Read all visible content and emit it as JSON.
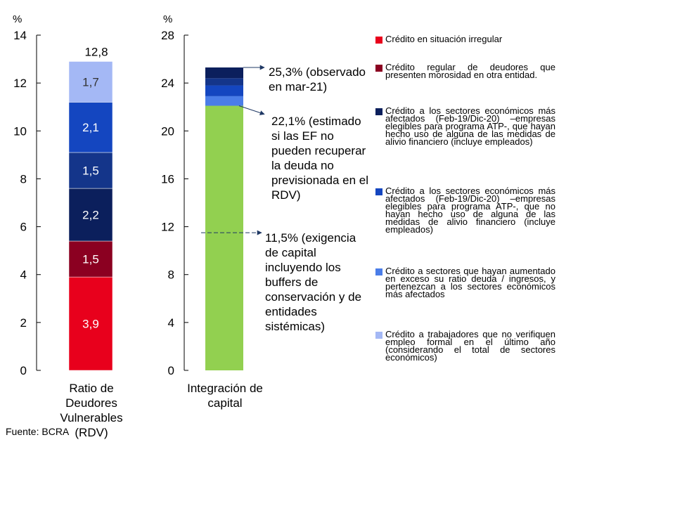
{
  "chart_data": [
    {
      "type": "bar",
      "stacked": true,
      "unit_label": "%",
      "categories": [
        "Ratio de Deudores Vulnerables (RDV)"
      ],
      "ylim": [
        0,
        14
      ],
      "yticks": [
        0,
        2,
        4,
        6,
        8,
        10,
        12,
        14
      ],
      "series": [
        {
          "color": "#E8001C",
          "values": [
            3.9
          ],
          "label": "3,9"
        },
        {
          "color": "#8B0021",
          "values": [
            1.5
          ],
          "label": "1,5"
        },
        {
          "color": "#0B1F5C",
          "values": [
            2.2
          ],
          "label": "2,2"
        },
        {
          "color": "#14358A",
          "values": [
            1.5
          ],
          "label": "1,5"
        },
        {
          "color": "#1446C0",
          "values": [
            2.1
          ],
          "label": "2,1"
        },
        {
          "color": "#A4B8F5",
          "values": [
            1.7
          ],
          "label": "1,7"
        }
      ],
      "total_label": "12,8"
    },
    {
      "type": "bar",
      "stacked": true,
      "unit_label": "%",
      "categories": [
        "Integración de capital"
      ],
      "ylim": [
        0,
        28
      ],
      "yticks": [
        0,
        4,
        8,
        12,
        16,
        20,
        24,
        28
      ],
      "series": [
        {
          "color": "#92D050",
          "values": [
            22.1
          ]
        },
        {
          "color": "#4A7DE8",
          "values": [
            0.8
          ]
        },
        {
          "color": "#1446C0",
          "values": [
            0.9
          ]
        },
        {
          "color": "#14358A",
          "values": [
            0.6
          ]
        },
        {
          "color": "#0B1F5C",
          "values": [
            0.9
          ]
        }
      ],
      "annotations": [
        {
          "y": 25.3,
          "text": "25,3% (observado en mar-21)"
        },
        {
          "y": 22.1,
          "text": "22,1% (estimado si las EF no pueden recuperar la deuda no previsionada en el RDV)"
        },
        {
          "y": 11.5,
          "text": "11,5% (exigencia de capital incluyendo los buffers de conservación y de entidades sistémicas)"
        }
      ]
    }
  ],
  "legend": [
    {
      "color": "#E8001C",
      "text": "Crédito en situación irregular"
    },
    {
      "color": "#8B0021",
      "text": "Crédito regular de deudores que presenten morosidad en otra entidad."
    },
    {
      "color": "#0B1F5C",
      "text": "Crédito a los sectores económicos más afectados (Feb-19/Dic-20) –empresas elegibles para programa ATP-, que hayan hecho uso de alguna de las medidas de alivio financiero (incluye empleados)"
    },
    {
      "color": "#1446C0",
      "text": "Crédito a los sectores económicos más afectados (Feb-19/Dic-20) –empresas elegibles para programa ATP-, que no hayan hecho uso de alguna de las medidas de alivio financiero (incluye empleados)"
    },
    {
      "color": "#4A7DE8",
      "text": "Crédito a sectores que hayan aumentado en exceso su ratio deuda / ingresos, y pertenezcan a los sectores económicos más afectados"
    },
    {
      "color": "#A4B8F5",
      "text": "Crédito a trabajadores que no verifiquen empleo formal en el último año (considerando el total de sectores económicos)"
    }
  ],
  "source": "Fuente: BCRA"
}
